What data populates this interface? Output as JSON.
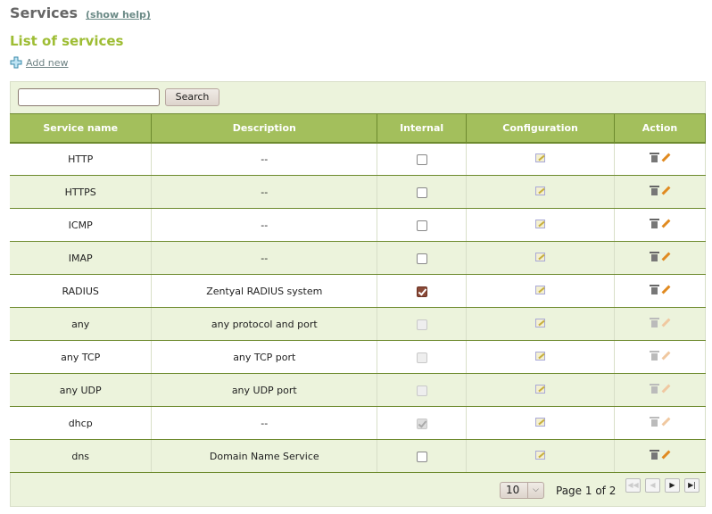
{
  "header": {
    "title": "Services",
    "help_link": "(show help)"
  },
  "section": {
    "title": "List of services",
    "add_new": "Add new"
  },
  "search": {
    "value": "",
    "placeholder": "",
    "button": "Search"
  },
  "table": {
    "columns": [
      "Service name",
      "Description",
      "Internal",
      "Configuration",
      "Action"
    ],
    "rows": [
      {
        "name": "HTTP",
        "description": "--",
        "internal": false,
        "internal_disabled": false,
        "actions_disabled": false
      },
      {
        "name": "HTTPS",
        "description": "--",
        "internal": false,
        "internal_disabled": false,
        "actions_disabled": false
      },
      {
        "name": "ICMP",
        "description": "--",
        "internal": false,
        "internal_disabled": false,
        "actions_disabled": false
      },
      {
        "name": "IMAP",
        "description": "--",
        "internal": false,
        "internal_disabled": false,
        "actions_disabled": false
      },
      {
        "name": "RADIUS",
        "description": "Zentyal RADIUS system",
        "internal": true,
        "internal_disabled": false,
        "actions_disabled": false
      },
      {
        "name": "any",
        "description": "any protocol and port",
        "internal": false,
        "internal_disabled": true,
        "actions_disabled": true
      },
      {
        "name": "any TCP",
        "description": "any TCP port",
        "internal": false,
        "internal_disabled": true,
        "actions_disabled": true
      },
      {
        "name": "any UDP",
        "description": "any UDP port",
        "internal": false,
        "internal_disabled": true,
        "actions_disabled": true
      },
      {
        "name": "dhcp",
        "description": "--",
        "internal": true,
        "internal_disabled": true,
        "actions_disabled": true
      },
      {
        "name": "dns",
        "description": "Domain Name Service",
        "internal": false,
        "internal_disabled": false,
        "actions_disabled": false
      }
    ]
  },
  "pagination": {
    "page_size": "10",
    "page_label": "Page 1 of 2"
  },
  "icons": {
    "add": "plus-icon",
    "config": "edit-config-icon",
    "delete": "trash-icon",
    "edit": "pencil-icon"
  },
  "colors": {
    "accent": "#a3bf5c",
    "title_green": "#9ebd34",
    "row_alt": "#ecf3dc"
  }
}
